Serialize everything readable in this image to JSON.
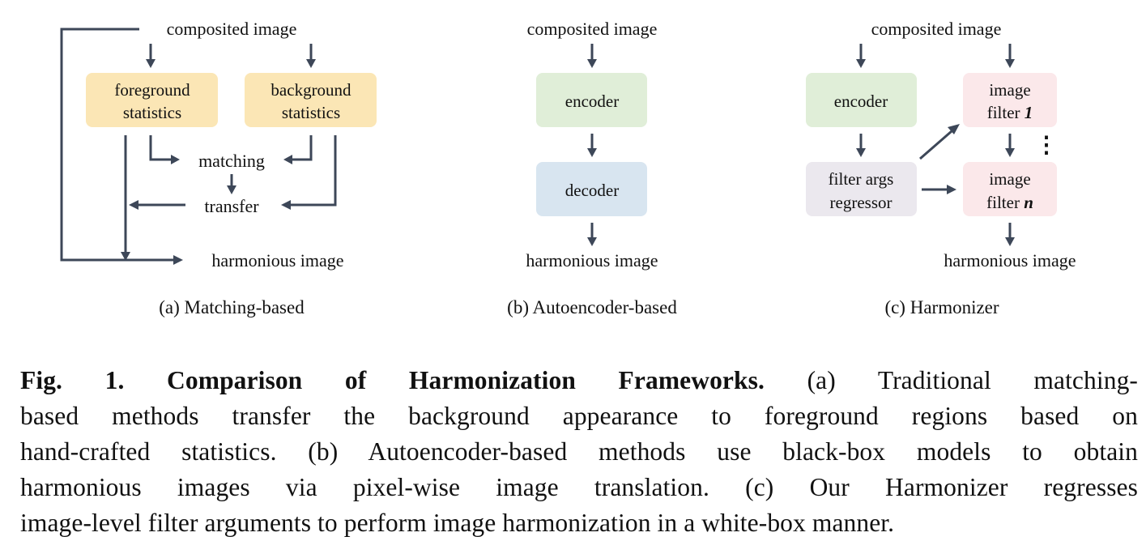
{
  "panels": {
    "a": {
      "input": "composited image",
      "fg_stats": [
        "foreground",
        "statistics"
      ],
      "bg_stats": [
        "background",
        "statistics"
      ],
      "matching": "matching",
      "transfer": "transfer",
      "output": "harmonious image",
      "subcaption": "(a) Matching-based"
    },
    "b": {
      "input": "composited image",
      "encoder": "encoder",
      "decoder": "decoder",
      "output": "harmonious image",
      "subcaption": "(b) Autoencoder-based"
    },
    "c": {
      "input": "composited image",
      "encoder": "encoder",
      "regressor": [
        "filter args",
        "regressor"
      ],
      "filter1": [
        "image",
        "filter",
        "1"
      ],
      "filtern": [
        "image",
        "filter",
        "n"
      ],
      "ellipsis": "⋮",
      "output": "harmonious image",
      "subcaption": "(c) Harmonizer"
    }
  },
  "colors": {
    "stats_box": "#fbe6b5",
    "encoder_box": "#e0eed8",
    "decoder_box": "#d8e5f0",
    "regressor_box": "#ebe8ee",
    "filter_box": "#fbe8ea",
    "edge": "#3d4758"
  },
  "caption": {
    "lead": "Fig. 1. Comparison of Harmonization Frameworks.",
    "lines": [
      " (a) Traditional matching-",
      "based methods transfer the background appearance to foreground regions based on",
      "hand-crafted statistics. (b) Autoencoder-based methods use black-box models to obtain",
      "harmonious images via pixel-wise image translation. (c) Our Harmonizer regresses",
      "image-level filter arguments to perform image harmonization in a white-box manner."
    ]
  }
}
